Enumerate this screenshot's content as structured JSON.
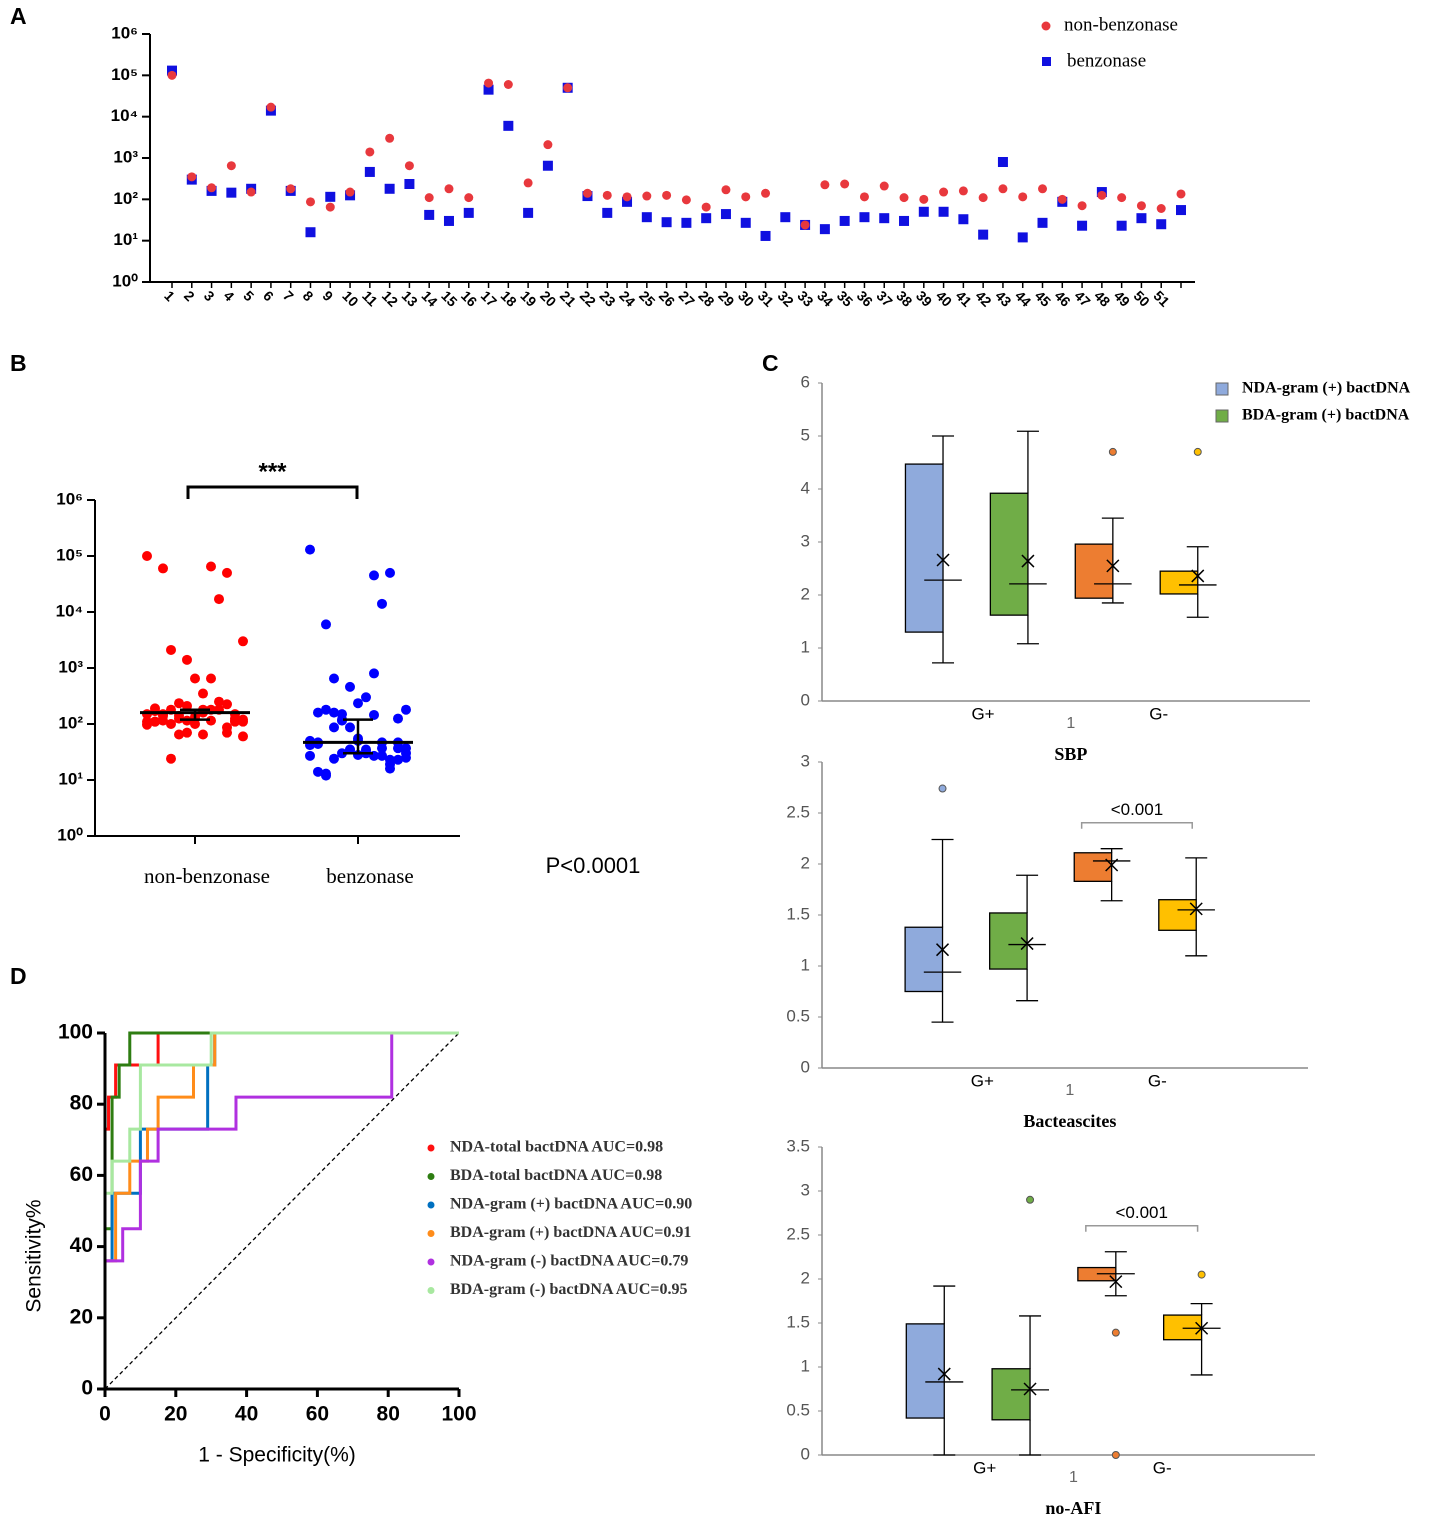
{
  "chart_data": [
    {
      "panel": "A",
      "type": "scatter",
      "log": true,
      "legend": "top-right",
      "categories": [
        1,
        2,
        3,
        4,
        5,
        6,
        7,
        8,
        9,
        10,
        11,
        12,
        13,
        14,
        15,
        16,
        17,
        18,
        19,
        20,
        21,
        22,
        23,
        24,
        25,
        26,
        27,
        28,
        29,
        30,
        31,
        32,
        33,
        34,
        35,
        36,
        37,
        38,
        39,
        40,
        41,
        42,
        43,
        44,
        45,
        46,
        47,
        48,
        49,
        50,
        51,
        null
      ],
      "series": [
        {
          "name": "non-benzonase",
          "color": "#e8383d",
          "marker": "circle",
          "values": [
            100000,
            350,
            190,
            650,
            150,
            17000,
            180,
            87,
            65,
            150,
            1400,
            3000,
            650,
            110,
            180,
            110,
            65000,
            60000,
            250,
            2100,
            50000,
            140,
            125,
            115,
            120,
            125,
            97,
            65,
            170,
            115,
            140,
            null,
            24,
            225,
            235,
            115,
            210,
            110,
            100,
            150,
            160,
            110,
            180,
            115,
            180,
            100,
            70,
            125,
            110,
            70,
            60,
            135
          ]
        },
        {
          "name": "benzonase",
          "color": "#1010e0",
          "marker": "square",
          "values": [
            130000,
            300,
            160,
            145,
            180,
            14000,
            160,
            16,
            115,
            125,
            460,
            180,
            235,
            42,
            30,
            47,
            45000,
            6000,
            47,
            650,
            50000,
            120,
            47,
            87,
            37,
            28,
            27,
            35,
            44,
            27,
            13,
            37,
            24,
            19,
            30,
            37,
            35,
            30,
            50,
            50,
            33,
            14,
            800,
            12,
            27,
            87,
            23,
            150,
            23,
            35,
            25,
            55
          ]
        }
      ],
      "ylim": [
        1,
        1000000
      ],
      "yticks": [
        {
          "value": 1,
          "label": "10⁰"
        },
        {
          "value": 10,
          "label": "10¹"
        },
        {
          "value": 100,
          "label": "10²"
        },
        {
          "value": 1000,
          "label": "10³"
        },
        {
          "value": 10000,
          "label": "10⁴"
        },
        {
          "value": 100000,
          "label": "10⁵"
        },
        {
          "value": 1000000,
          "label": "10⁶"
        }
      ]
    },
    {
      "panel": "B",
      "type": "dot",
      "log": true,
      "categories": [
        "non-benzonase",
        "benzonase"
      ],
      "colors": [
        "#ff0000",
        "#0000ff"
      ],
      "summary": [
        {
          "median": 160,
          "q1": 120,
          "q3": 180
        },
        {
          "median": 47,
          "q1": 30,
          "q3": 120
        }
      ],
      "annotation": "***",
      "note": "P<0.0001",
      "ylim": [
        1,
        1000000
      ],
      "yticks": [
        {
          "value": 1,
          "label": "10⁰"
        },
        {
          "value": 10,
          "label": "10¹"
        },
        {
          "value": 100,
          "label": "10²"
        },
        {
          "value": 1000,
          "label": "10³"
        },
        {
          "value": 10000,
          "label": "10⁴"
        },
        {
          "value": 100000,
          "label": "10⁵"
        },
        {
          "value": 1000000,
          "label": "10⁶"
        }
      ]
    },
    {
      "panel": "C",
      "type": "box",
      "title": "SBP",
      "xlabel": "1",
      "groups": [
        "G+",
        "G-"
      ],
      "legend": [
        {
          "name": "NDA-gram (+) bactDNA",
          "color": "#8faadc"
        },
        {
          "name": "BDA-gram (+) bactDNA",
          "color": "#70ad47"
        }
      ],
      "ylim": [
        0,
        6
      ],
      "yticks": [
        0,
        1,
        2,
        3,
        4,
        5,
        6
      ],
      "boxes": [
        {
          "color": "#8faadc",
          "min": 0.72,
          "q1": 1.3,
          "median": 2.28,
          "q3": 4.47,
          "max": 5.0,
          "mean": 2.66,
          "outliers": []
        },
        {
          "color": "#70ad47",
          "min": 1.08,
          "q1": 1.62,
          "median": 2.21,
          "q3": 3.92,
          "max": 5.09,
          "mean": 2.64,
          "outliers": []
        },
        {
          "color": "#ed7d31",
          "min": 1.85,
          "q1": 1.94,
          "median": 2.21,
          "q3": 2.96,
          "max": 3.45,
          "mean": 2.55,
          "outliers": [
            4.7
          ]
        },
        {
          "color": "#ffc000",
          "min": 1.58,
          "q1": 2.02,
          "median": 2.19,
          "q3": 2.45,
          "max": 2.91,
          "mean": 2.36,
          "outliers": [
            4.7
          ]
        }
      ]
    },
    {
      "type": "box",
      "title": "Bacteascites",
      "xlabel": "1",
      "groups": [
        "G+",
        "G-"
      ],
      "annotation": "<0.001",
      "ylim": [
        0,
        3
      ],
      "yticks": [
        0,
        0.5,
        1,
        1.5,
        2,
        2.5,
        3
      ],
      "boxes": [
        {
          "color": "#8faadc",
          "min": 0.45,
          "q1": 0.75,
          "median": 0.94,
          "q3": 1.38,
          "max": 2.24,
          "mean": 1.16,
          "outliers": [
            2.74
          ]
        },
        {
          "color": "#70ad47",
          "min": 0.66,
          "q1": 0.97,
          "median": 1.21,
          "q3": 1.52,
          "max": 1.89,
          "mean": 1.22,
          "outliers": []
        },
        {
          "color": "#ed7d31",
          "min": 1.64,
          "q1": 1.83,
          "median": 2.03,
          "q3": 2.11,
          "max": 2.15,
          "mean": 1.99,
          "outliers": []
        },
        {
          "color": "#ffc000",
          "min": 1.1,
          "q1": 1.35,
          "median": 1.55,
          "q3": 1.65,
          "max": 2.06,
          "mean": 1.56,
          "outliers": []
        }
      ]
    },
    {
      "type": "box",
      "title": "no-AFI",
      "xlabel": "1",
      "groups": [
        "G+",
        "G-"
      ],
      "annotation": "<0.001",
      "ylim": [
        0,
        3.5
      ],
      "yticks": [
        0,
        0.5,
        1,
        1.5,
        2,
        2.5,
        3,
        3.5
      ],
      "boxes": [
        {
          "color": "#8faadc",
          "min": 0,
          "q1": 0.42,
          "median": 0.83,
          "q3": 1.49,
          "max": 1.92,
          "mean": 0.92,
          "outliers": []
        },
        {
          "color": "#70ad47",
          "min": 0,
          "q1": 0.4,
          "median": 0.74,
          "q3": 0.98,
          "max": 1.58,
          "mean": 0.75,
          "outliers": [
            2.9
          ]
        },
        {
          "color": "#ed7d31",
          "min": 1.81,
          "q1": 1.98,
          "median": 2.06,
          "q3": 2.13,
          "max": 2.31,
          "mean": 1.97,
          "outliers": [
            1.39,
            0
          ]
        },
        {
          "color": "#ffc000",
          "min": 0.91,
          "q1": 1.31,
          "median": 1.44,
          "q3": 1.59,
          "max": 1.72,
          "mean": 1.44,
          "outliers": [
            2.05
          ]
        }
      ]
    },
    {
      "panel": "D",
      "type": "roc",
      "xlabel": "1 - Specificity(%)",
      "ylabel": "Sensitivity%",
      "xlim": [
        0,
        100
      ],
      "ylim": [
        0,
        100
      ],
      "xticks": [
        0,
        20,
        40,
        60,
        80,
        100
      ],
      "yticks": [
        0,
        20,
        40,
        60,
        80,
        100
      ],
      "series": [
        {
          "name": "NDA-total bactDNA AUC=0.98",
          "color": "#ff1010",
          "x": [
            0,
            0,
            1,
            1,
            3,
            3,
            15,
            15,
            100
          ],
          "y": [
            0,
            73,
            73,
            82,
            82,
            91,
            91,
            100,
            100
          ]
        },
        {
          "name": "BDA-total bactDNA AUC=0.98",
          "color": "#2e7d12",
          "x": [
            0,
            0,
            2,
            2,
            4,
            4,
            7,
            7,
            100
          ],
          "y": [
            0,
            45,
            45,
            82,
            82,
            91,
            91,
            100,
            100
          ]
        },
        {
          "name": "NDA-gram (+) bactDNA AUC=0.90",
          "color": "#0070c0",
          "x": [
            0,
            0,
            2,
            2,
            10,
            10,
            29,
            29,
            31,
            31,
            100
          ],
          "y": [
            0,
            36,
            36,
            55,
            55,
            73,
            73,
            91,
            91,
            100,
            100
          ]
        },
        {
          "name": "BDA-gram (+) bactDNA AUC=0.91",
          "color": "#ff8c1a",
          "x": [
            0,
            0,
            3,
            3,
            7,
            7,
            12,
            12,
            15,
            15,
            25,
            25,
            31,
            31,
            100
          ],
          "y": [
            0,
            36,
            36,
            55,
            55,
            64,
            64,
            73,
            73,
            82,
            82,
            91,
            91,
            100,
            100
          ]
        },
        {
          "name": "NDA-gram (-) bactDNA AUC=0.79",
          "color": "#b030e0",
          "x": [
            0,
            0,
            5,
            5,
            10,
            10,
            15,
            15,
            37,
            37,
            81,
            81,
            100
          ],
          "y": [
            0,
            36,
            36,
            45,
            45,
            64,
            64,
            73,
            73,
            82,
            82,
            100,
            100
          ]
        },
        {
          "name": "BDA-gram (-) bactDNA AUC=0.95",
          "color": "#a8e8a0",
          "x": [
            0,
            0,
            2,
            2,
            7,
            7,
            10,
            10,
            30,
            30,
            100
          ],
          "y": [
            0,
            55,
            55,
            64,
            64,
            73,
            73,
            91,
            91,
            100,
            100
          ]
        }
      ]
    }
  ]
}
